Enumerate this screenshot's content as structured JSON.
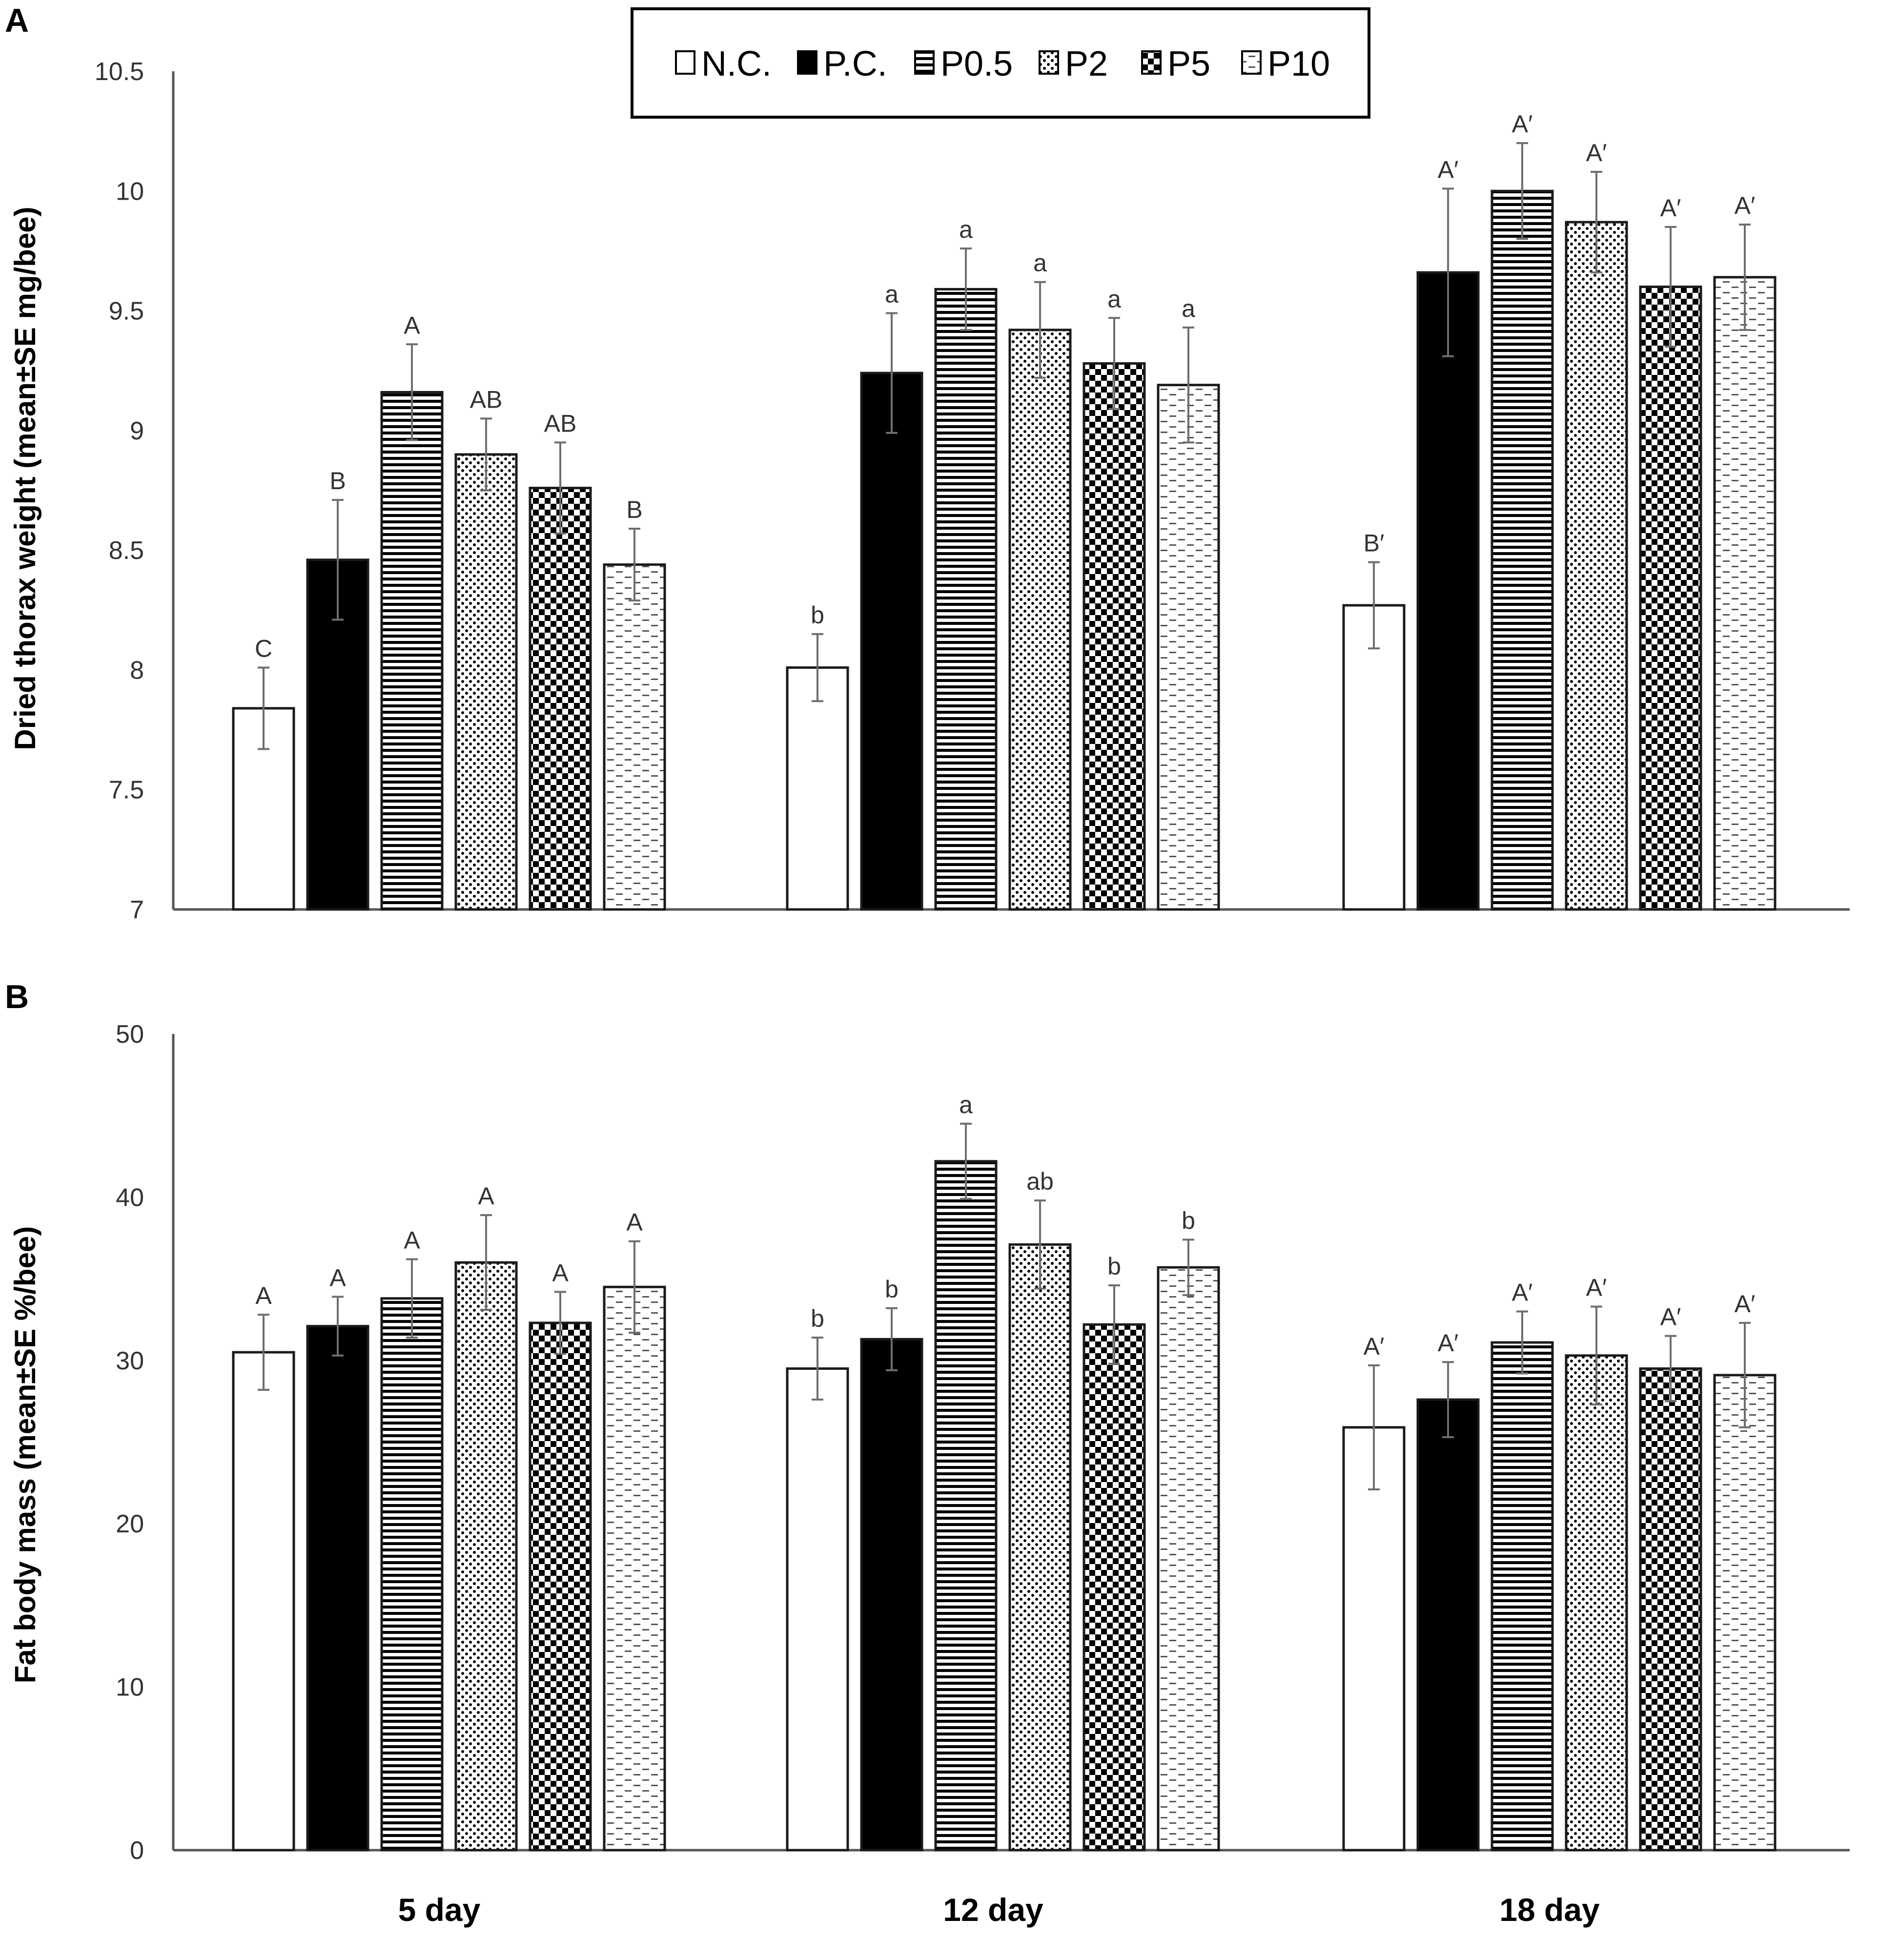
{
  "legend": {
    "items": [
      {
        "label": "N.C.",
        "pattern": "white"
      },
      {
        "label": "P.C.",
        "pattern": "black"
      },
      {
        "label": "P0.5",
        "pattern": "hstripes"
      },
      {
        "label": "P2",
        "pattern": "dots"
      },
      {
        "label": "P5",
        "pattern": "checker"
      },
      {
        "label": "P10",
        "pattern": "dashes"
      }
    ]
  },
  "chart_data": [
    {
      "type": "bar",
      "panel": "A",
      "title": "",
      "xlabel": "",
      "ylabel": "Dried thorax weight (mean±SE mg/bee)",
      "ylim": [
        7,
        10.5
      ],
      "yticks": [
        7,
        7.5,
        8,
        8.5,
        9,
        9.5,
        10,
        10.5
      ],
      "ytick_labels": [
        "7",
        "7.5",
        "8",
        "8.5",
        "9",
        "9.5",
        "10",
        "10.5"
      ],
      "categories": [
        "5 day",
        "12 day",
        "18 day"
      ],
      "show_category_labels": false,
      "series": [
        {
          "name": "N.C.",
          "pattern": "white",
          "values": [
            7.84,
            8.01,
            8.27
          ],
          "errors": [
            0.17,
            0.14,
            0.18
          ],
          "letters": [
            "C",
            "b",
            "B′"
          ]
        },
        {
          "name": "P.C.",
          "pattern": "black",
          "values": [
            8.46,
            9.24,
            9.66
          ],
          "errors": [
            0.25,
            0.25,
            0.35
          ],
          "letters": [
            "B",
            "a",
            "A′"
          ]
        },
        {
          "name": "P0.5",
          "pattern": "hstripes",
          "values": [
            9.16,
            9.59,
            10.0
          ],
          "errors": [
            0.2,
            0.17,
            0.2
          ],
          "letters": [
            "A",
            "a",
            "A′"
          ]
        },
        {
          "name": "P2",
          "pattern": "dots",
          "values": [
            8.9,
            9.42,
            9.87
          ],
          "errors": [
            0.15,
            0.2,
            0.21
          ],
          "letters": [
            "AB",
            "a",
            "A′"
          ]
        },
        {
          "name": "P5",
          "pattern": "checker",
          "values": [
            8.76,
            9.28,
            9.6
          ],
          "errors": [
            0.19,
            0.19,
            0.25
          ],
          "letters": [
            "AB",
            "a",
            "A′"
          ]
        },
        {
          "name": "P10",
          "pattern": "dashes",
          "values": [
            8.44,
            9.19,
            9.64
          ],
          "errors": [
            0.15,
            0.24,
            0.22
          ],
          "letters": [
            "B",
            "a",
            "A′"
          ]
        }
      ]
    },
    {
      "type": "bar",
      "panel": "B",
      "title": "",
      "xlabel": "",
      "ylabel": "Fat body mass (mean±SE %/bee)",
      "ylim": [
        0,
        50
      ],
      "yticks": [
        0,
        10,
        20,
        30,
        40,
        50
      ],
      "ytick_labels": [
        "0",
        "10",
        "20",
        "30",
        "40",
        "50"
      ],
      "categories": [
        "5 day",
        "12 day",
        "18 day"
      ],
      "show_category_labels": true,
      "series": [
        {
          "name": "N.C.",
          "pattern": "white",
          "values": [
            30.5,
            29.5,
            25.9
          ],
          "errors": [
            2.3,
            1.9,
            3.8
          ],
          "letters": [
            "A",
            "b",
            "A′"
          ]
        },
        {
          "name": "P.C.",
          "pattern": "black",
          "values": [
            32.1,
            31.3,
            27.6
          ],
          "errors": [
            1.8,
            1.9,
            2.3
          ],
          "letters": [
            "A",
            "b",
            "A′"
          ]
        },
        {
          "name": "P0.5",
          "pattern": "hstripes",
          "values": [
            33.8,
            42.2,
            31.1
          ],
          "errors": [
            2.4,
            2.3,
            1.9
          ],
          "letters": [
            "A",
            "a",
            "A′"
          ]
        },
        {
          "name": "P2",
          "pattern": "dots",
          "values": [
            36.0,
            37.1,
            30.3
          ],
          "errors": [
            2.9,
            2.7,
            3.0
          ],
          "letters": [
            "A",
            "ab",
            "A′"
          ]
        },
        {
          "name": "P5",
          "pattern": "checker",
          "values": [
            32.3,
            32.2,
            29.5
          ],
          "errors": [
            1.9,
            2.4,
            2.0
          ],
          "letters": [
            "A",
            "b",
            "A′"
          ]
        },
        {
          "name": "P10",
          "pattern": "dashes",
          "values": [
            34.5,
            35.7,
            29.1
          ],
          "errors": [
            2.8,
            1.7,
            3.2
          ],
          "letters": [
            "A",
            "b",
            "A′"
          ]
        }
      ]
    }
  ]
}
